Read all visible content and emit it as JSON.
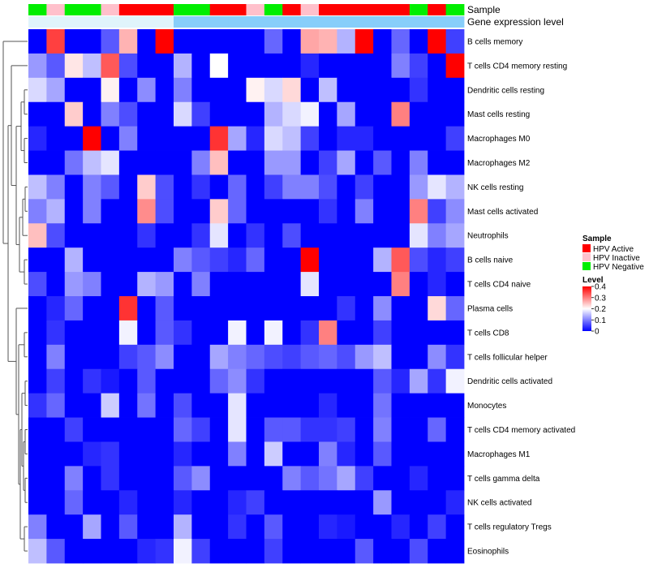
{
  "chart_data": {
    "type": "heatmap",
    "rows": [
      "B cells memory",
      "T cells CD4 memory resting",
      "Dendritic cells resting",
      "Mast cells resting",
      "Macrophages M0",
      "Macrophages M2",
      "NK cells resting",
      "Mast cells activated",
      "Neutrophils",
      "B cells naive",
      "T cells CD4 naive",
      "Plasma cells",
      "T cells CD8",
      "T cells follicular helper",
      "Dendritic cells activated",
      "Monocytes",
      "T cells CD4 memory activated",
      "Macrophages M1",
      "T cells gamma delta",
      "NK cells activated",
      "T cells regulatory  Tregs",
      "Eosinophils"
    ],
    "annotations": [
      {
        "label": "Sample",
        "values": [
          "HPV Negative",
          "HPV Inactive",
          "HPV Negative",
          "HPV Negative",
          "HPV Inactive",
          "HPV Active",
          "HPV Active",
          "HPV Active",
          "HPV Negative",
          "HPV Negative",
          "HPV Active",
          "HPV Active",
          "HPV Inactive",
          "HPV Negative",
          "HPV Active",
          "HPV Inactive",
          "HPV Active",
          "HPV Active",
          "HPV Active",
          "HPV Active",
          "HPV Active",
          "HPV Negative",
          "HPV Active",
          "HPV Negative"
        ]
      },
      {
        "label": "Gene expression level",
        "values": [
          "Low",
          "Low",
          "Low",
          "Low",
          "Low",
          "Low",
          "Low",
          "Low",
          "High",
          "High",
          "High",
          "High",
          "High",
          "High",
          "High",
          "High",
          "High",
          "High",
          "High",
          "High",
          "High",
          "High",
          "High",
          "High"
        ]
      }
    ],
    "values": [
      [
        0.0,
        0.35,
        0.0,
        0.0,
        0.07,
        0.26,
        0.0,
        0.4,
        0.0,
        0.0,
        0.0,
        0.0,
        0.0,
        0.08,
        0.0,
        0.27,
        0.26,
        0.14,
        0.4,
        0.0,
        0.08,
        0.0,
        0.4,
        0.05
      ],
      [
        0.12,
        0.07,
        0.22,
        0.15,
        0.33,
        0.06,
        0.0,
        0.0,
        0.14,
        0.0,
        0.2,
        0.0,
        0.0,
        0.0,
        0.0,
        0.03,
        0.0,
        0.0,
        0.0,
        0.0,
        0.1,
        0.05,
        0.0,
        0.4
      ],
      [
        0.17,
        0.13,
        0.0,
        0.0,
        0.21,
        0.0,
        0.11,
        0.0,
        0.1,
        0.0,
        0.0,
        0.0,
        0.21,
        0.17,
        0.23,
        0.0,
        0.15,
        0.0,
        0.0,
        0.0,
        0.0,
        0.04,
        0.0,
        0.0
      ],
      [
        0.0,
        0.0,
        0.24,
        0.0,
        0.1,
        0.06,
        0.0,
        0.0,
        0.17,
        0.05,
        0.0,
        0.0,
        0.0,
        0.14,
        0.17,
        0.19,
        0.0,
        0.13,
        0.0,
        0.0,
        0.3,
        0.0,
        0.0,
        0.0
      ],
      [
        0.03,
        0.0,
        0.0,
        0.4,
        0.0,
        0.1,
        0.0,
        0.0,
        0.0,
        0.0,
        0.36,
        0.13,
        0.03,
        0.17,
        0.15,
        0.05,
        0.0,
        0.03,
        0.03,
        0.0,
        0.0,
        0.0,
        0.0,
        0.05
      ],
      [
        0.0,
        0.0,
        0.09,
        0.15,
        0.18,
        0.0,
        0.0,
        0.0,
        0.0,
        0.1,
        0.25,
        0.0,
        0.0,
        0.12,
        0.12,
        0.0,
        0.05,
        0.13,
        0.0,
        0.07,
        0.0,
        0.1,
        0.0,
        0.0
      ],
      [
        0.15,
        0.1,
        0.0,
        0.1,
        0.07,
        0.0,
        0.24,
        0.06,
        0.0,
        0.04,
        0.0,
        0.08,
        0.0,
        0.05,
        0.1,
        0.1,
        0.06,
        0.0,
        0.05,
        0.0,
        0.0,
        0.12,
        0.18,
        0.14
      ],
      [
        0.1,
        0.14,
        0.0,
        0.1,
        0.0,
        0.0,
        0.29,
        0.06,
        0.0,
        0.0,
        0.24,
        0.08,
        0.0,
        0.0,
        0.0,
        0.0,
        0.04,
        0.0,
        0.1,
        0.0,
        0.0,
        0.3,
        0.05,
        0.11
      ],
      [
        0.25,
        0.06,
        0.0,
        0.0,
        0.0,
        0.0,
        0.04,
        0.0,
        0.0,
        0.04,
        0.18,
        0.0,
        0.04,
        0.0,
        0.06,
        0.0,
        0.0,
        0.0,
        0.0,
        0.0,
        0.0,
        0.18,
        0.1,
        0.13
      ],
      [
        0.0,
        0.0,
        0.14,
        0.0,
        0.0,
        0.0,
        0.0,
        0.0,
        0.1,
        0.07,
        0.05,
        0.03,
        0.08,
        0.0,
        0.0,
        0.4,
        0.0,
        0.0,
        0.0,
        0.14,
        0.33,
        0.06,
        0.03,
        0.05
      ],
      [
        0.06,
        0.0,
        0.12,
        0.1,
        0.0,
        0.0,
        0.14,
        0.12,
        0.0,
        0.1,
        0.0,
        0.0,
        0.0,
        0.0,
        0.0,
        0.18,
        0.0,
        0.0,
        0.0,
        0.0,
        0.3,
        0.0,
        0.03,
        0.0
      ],
      [
        0.0,
        0.03,
        0.08,
        0.0,
        0.0,
        0.36,
        0.0,
        0.07,
        0.0,
        0.0,
        0.0,
        0.0,
        0.0,
        0.0,
        0.0,
        0.0,
        0.0,
        0.04,
        0.0,
        0.11,
        0.0,
        0.0,
        0.23,
        0.08
      ],
      [
        0.0,
        0.04,
        0.0,
        0.0,
        0.0,
        0.19,
        0.0,
        0.07,
        0.04,
        0.0,
        0.0,
        0.19,
        0.0,
        0.19,
        0.0,
        0.04,
        0.3,
        0.0,
        0.0,
        0.05,
        0.0,
        0.0,
        0.0,
        0.0
      ],
      [
        0.0,
        0.1,
        0.0,
        0.0,
        0.0,
        0.05,
        0.07,
        0.11,
        0.0,
        0.0,
        0.13,
        0.1,
        0.08,
        0.06,
        0.05,
        0.07,
        0.08,
        0.06,
        0.12,
        0.15,
        0.0,
        0.0,
        0.11,
        0.04
      ],
      [
        0.0,
        0.05,
        0.0,
        0.04,
        0.02,
        0.0,
        0.07,
        0.0,
        0.0,
        0.0,
        0.08,
        0.11,
        0.04,
        0.0,
        0.0,
        0.0,
        0.0,
        0.0,
        0.0,
        0.07,
        0.03,
        0.13,
        0.04,
        0.19
      ],
      [
        0.04,
        0.08,
        0.0,
        0.0,
        0.16,
        0.0,
        0.09,
        0.0,
        0.06,
        0.0,
        0.0,
        0.18,
        0.0,
        0.0,
        0.0,
        0.0,
        0.03,
        0.0,
        0.0,
        0.09,
        0.0,
        0.0,
        0.0,
        0.0
      ],
      [
        0.0,
        0.0,
        0.05,
        0.0,
        0.0,
        0.0,
        0.0,
        0.0,
        0.08,
        0.05,
        0.0,
        0.18,
        0.0,
        0.07,
        0.07,
        0.04,
        0.04,
        0.05,
        0.0,
        0.1,
        0.0,
        0.0,
        0.08,
        0.0
      ],
      [
        0.0,
        0.0,
        0.0,
        0.03,
        0.04,
        0.0,
        0.0,
        0.0,
        0.03,
        0.0,
        0.0,
        0.1,
        0.0,
        0.16,
        0.0,
        0.0,
        0.1,
        0.03,
        0.0,
        0.07,
        0.0,
        0.0,
        0.0,
        0.0
      ],
      [
        0.0,
        0.0,
        0.1,
        0.0,
        0.04,
        0.0,
        0.0,
        0.0,
        0.07,
        0.11,
        0.0,
        0.0,
        0.0,
        0.0,
        0.1,
        0.07,
        0.09,
        0.13,
        0.05,
        0.0,
        0.0,
        0.03,
        0.0,
        0.0
      ],
      [
        0.0,
        0.0,
        0.08,
        0.0,
        0.0,
        0.03,
        0.0,
        0.0,
        0.03,
        0.0,
        0.0,
        0.03,
        0.05,
        0.0,
        0.0,
        0.0,
        0.0,
        0.0,
        0.0,
        0.12,
        0.0,
        0.0,
        0.0,
        0.03
      ],
      [
        0.1,
        0.0,
        0.0,
        0.13,
        0.0,
        0.07,
        0.0,
        0.0,
        0.14,
        0.0,
        0.0,
        0.04,
        0.0,
        0.07,
        0.0,
        0.0,
        0.03,
        0.02,
        0.0,
        0.0,
        0.03,
        0.0,
        0.05,
        0.0
      ],
      [
        0.15,
        0.07,
        0.0,
        0.0,
        0.0,
        0.0,
        0.03,
        0.04,
        0.19,
        0.05,
        0.0,
        0.0,
        0.0,
        0.05,
        0.0,
        0.0,
        0.0,
        0.0,
        0.07,
        0.0,
        0.0,
        0.06,
        0.0,
        0.0
      ]
    ],
    "legend": {
      "sample_title": "Sample",
      "sample_items": [
        {
          "label": "HPV Active",
          "color": "#ff0000"
        },
        {
          "label": "HPV Inactive",
          "color": "#ffc0cb"
        },
        {
          "label": "HPV Negative",
          "color": "#00ee00"
        }
      ],
      "level_title": "Level",
      "level_ticks": [
        "0.4",
        "0.3",
        "0.2",
        "0.1",
        "0"
      ],
      "level_range": [
        0,
        0.4
      ],
      "placement": "right"
    },
    "colors": {
      "low": "#0000ff",
      "mid": "#ffffff",
      "high": "#ff0000",
      "expr_low": "#e0f4fb",
      "expr_high": "#87cefa"
    }
  }
}
